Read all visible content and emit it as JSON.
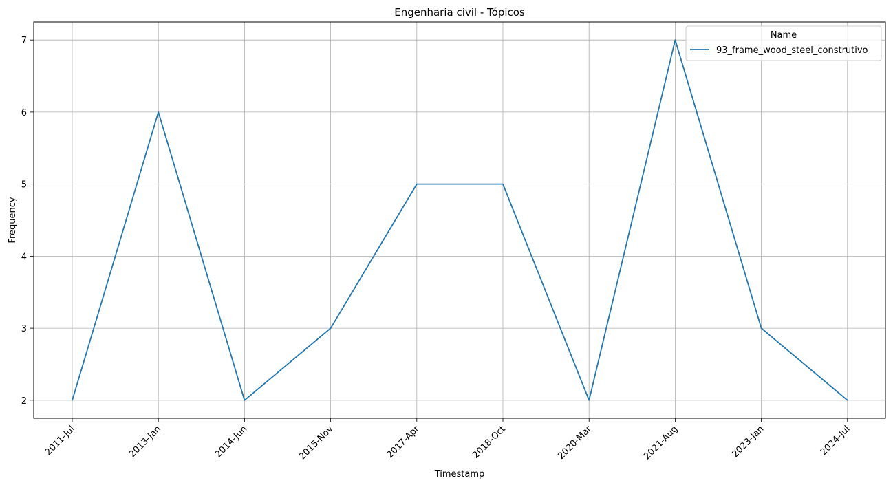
{
  "chart_data": {
    "type": "line",
    "title": "Engenharia civil - Tópicos",
    "xlabel": "Timestamp",
    "ylabel": "Frequency",
    "categories": [
      "2011-Jul",
      "2013-Jan",
      "2014-Jun",
      "2015-Nov",
      "2017-Apr",
      "2018-Oct",
      "2020-Mar",
      "2021-Aug",
      "2023-Jan",
      "2024-Jul"
    ],
    "yticks": [
      "2",
      "3",
      "4",
      "5",
      "6",
      "7"
    ],
    "ylim": [
      1.75,
      7.25
    ],
    "grid": true,
    "legend": {
      "title": "Name",
      "placement": "top-right"
    },
    "series": [
      {
        "name": "93_frame_wood_steel_construtivo",
        "color": "#1f77b4",
        "values": [
          2,
          6,
          2,
          3,
          5,
          5,
          2,
          7,
          3,
          2
        ]
      }
    ]
  }
}
